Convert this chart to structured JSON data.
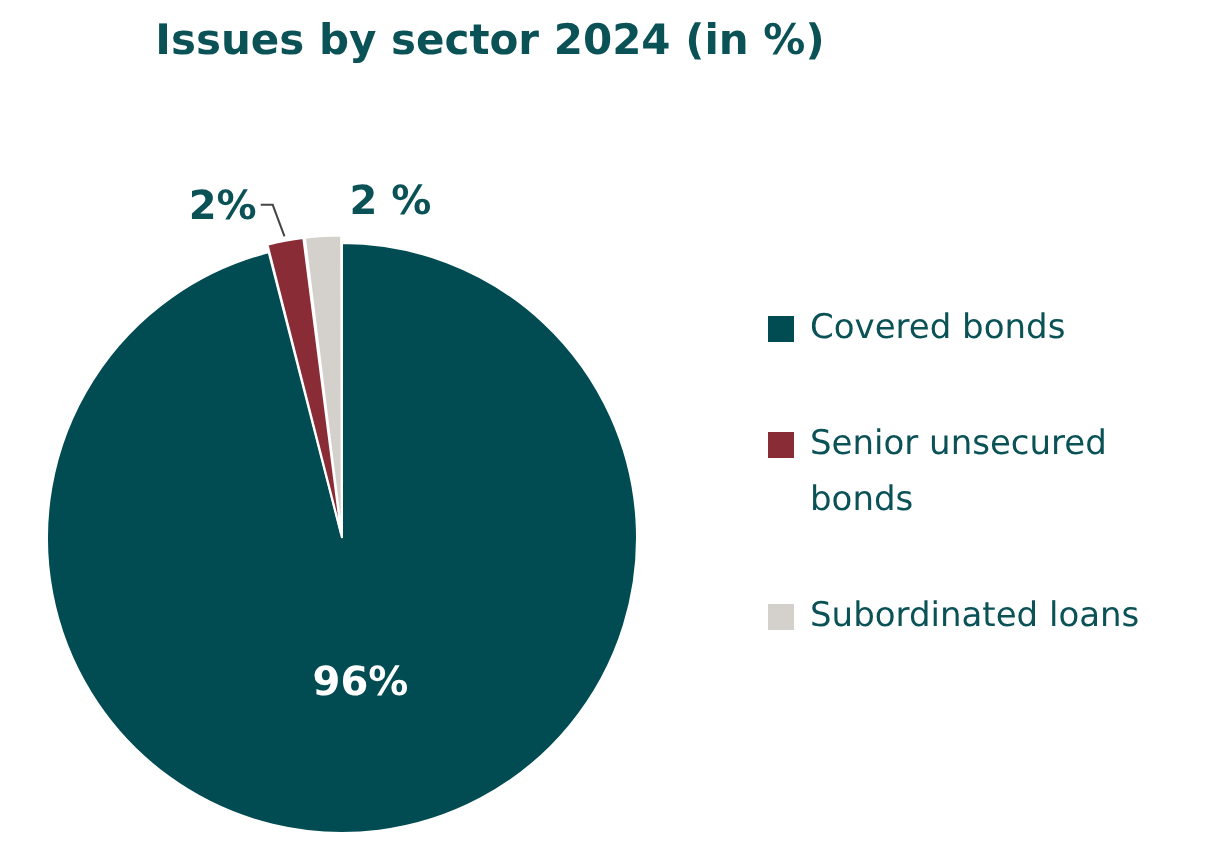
{
  "chart_data": {
    "type": "pie",
    "title": "Issues by sector 2024 (in %)",
    "categories": [
      "Covered bonds",
      "Senior unsecured bonds",
      "Subordinated loans"
    ],
    "values": [
      96,
      2,
      2
    ],
    "colors": [
      "#004c52",
      "#8a2c35",
      "#d4d1cd"
    ],
    "value_labels": [
      "96%",
      "2%",
      "2 %"
    ],
    "legend": "right"
  }
}
